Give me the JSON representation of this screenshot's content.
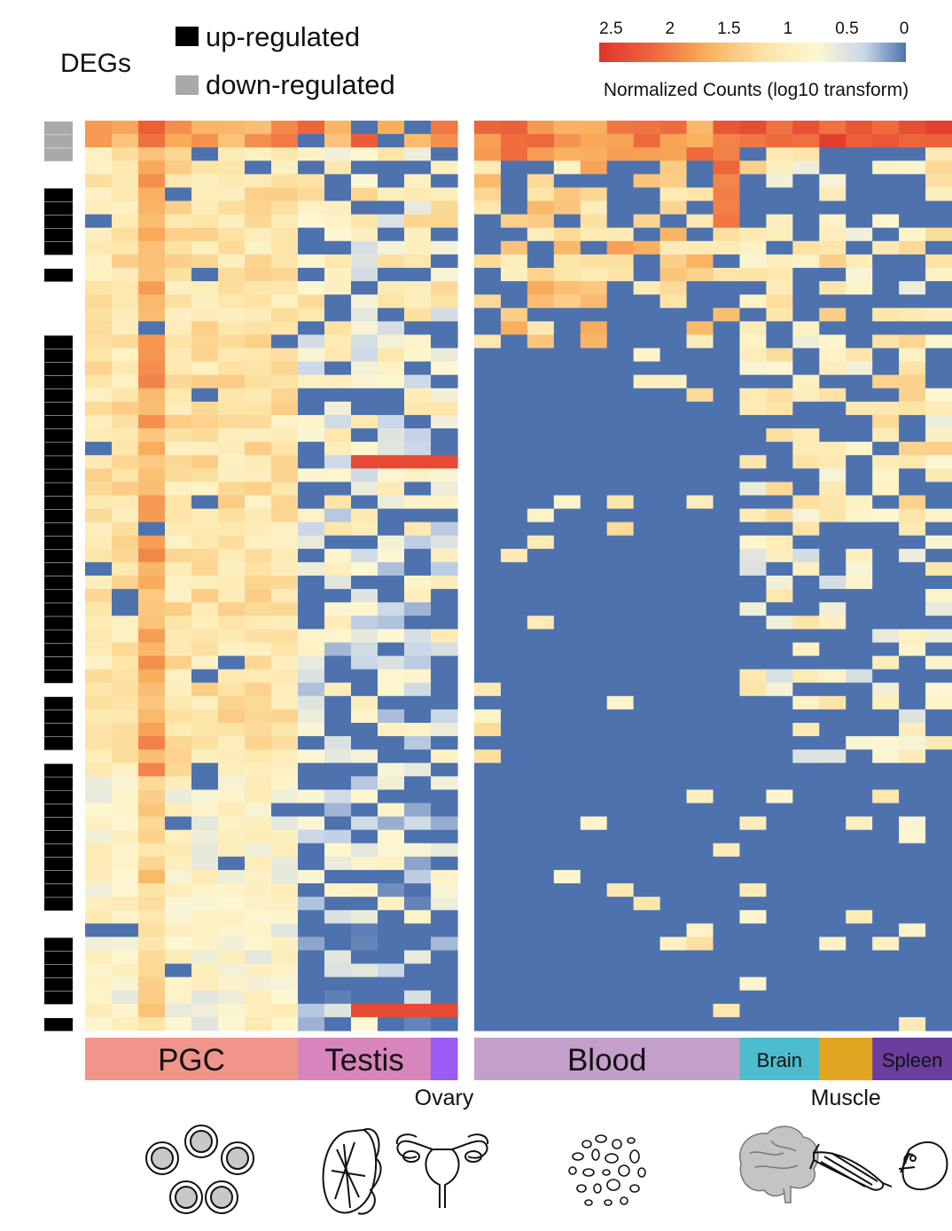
{
  "chart_data": {
    "type": "heatmap",
    "legend_title": "DEGs",
    "legend_items": [
      {
        "label": "up-regulated",
        "color": "#000000"
      },
      {
        "label": "down-regulated",
        "color": "#a9a9a9"
      }
    ],
    "colorbar": {
      "title": "Normalized Counts (log10 transform)",
      "ticks": [
        "2.5",
        "2",
        "1.5",
        "1",
        "0.5",
        "0"
      ],
      "tick_values": [
        2.5,
        2,
        1.5,
        1,
        0.5,
        0
      ],
      "range": [
        0,
        2.6
      ],
      "stops": [
        {
          "v": 0.0,
          "color": "#4e72ae"
        },
        {
          "v": 0.35,
          "color": "#c9d6e8"
        },
        {
          "v": 0.75,
          "color": "#fdf7d2"
        },
        {
          "v": 1.2,
          "color": "#fde4a6"
        },
        {
          "v": 1.7,
          "color": "#f9ae5c"
        },
        {
          "v": 2.1,
          "color": "#ef6c3e"
        },
        {
          "v": 2.6,
          "color": "#e0332d"
        }
      ]
    },
    "row_count": 68,
    "deg_regulation": [
      "down",
      "down",
      "down",
      "none",
      "none",
      "up",
      "up",
      "up",
      "up",
      "up",
      "none",
      "up",
      "none",
      "none",
      "none",
      "none",
      "up",
      "up",
      "up",
      "up",
      "up",
      "up",
      "up",
      "up",
      "up",
      "up",
      "up",
      "up",
      "up",
      "up",
      "up",
      "up",
      "up",
      "up",
      "up",
      "up",
      "up",
      "up",
      "up",
      "up",
      "up",
      "up",
      "none",
      "up",
      "up",
      "up",
      "up",
      "none",
      "up",
      "up",
      "up",
      "up",
      "up",
      "up",
      "up",
      "up",
      "up",
      "up",
      "up",
      "none",
      "none",
      "up",
      "up",
      "up",
      "up",
      "up",
      "none",
      "up"
    ],
    "groups": [
      {
        "label": "PGC",
        "n": 8,
        "color": "#f1948a",
        "panel": "left",
        "label_position": "inside"
      },
      {
        "label": "Testis",
        "n": 5,
        "color": "#d785ba",
        "panel": "left",
        "label_position": "inside"
      },
      {
        "label": "Ovary",
        "n": 1,
        "color": "#9a5cf4",
        "panel": "left",
        "label_position": "below"
      },
      {
        "label": "Blood",
        "n": 10,
        "color": "#c59fcb",
        "panel": "right",
        "label_position": "inside"
      },
      {
        "label": "Brain",
        "n": 3,
        "color": "#4dbccc",
        "panel": "right",
        "label_position": "inside"
      },
      {
        "label": "Muscle",
        "n": 2,
        "color": "#e2a521",
        "panel": "right",
        "label_position": "below"
      },
      {
        "label": "Spleen",
        "n": 3,
        "color": "#6a3d9e",
        "panel": "right",
        "label_position": "inside"
      }
    ],
    "icons": [
      "pgc-cells-icon",
      "testis-icon",
      "ovary-uterus-icon",
      "blood-cells-icon",
      "brain-icon",
      "muscle-icon",
      "spleen-icon"
    ]
  }
}
